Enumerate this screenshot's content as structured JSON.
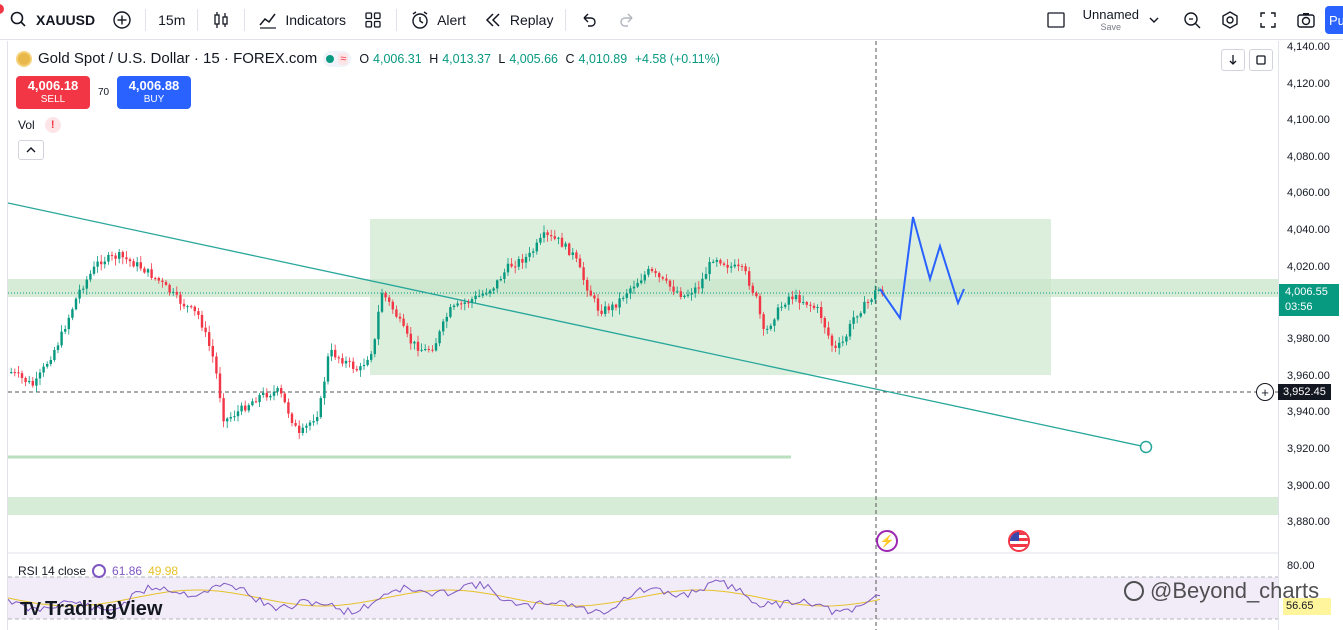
{
  "toolbar": {
    "symbol": "XAUUSD",
    "interval": "15m",
    "indicators": "Indicators",
    "alert": "Alert",
    "replay": "Replay",
    "layout_name": "Unnamed",
    "layout_save": "Save",
    "publish": "Pu"
  },
  "legend": {
    "title": "Gold Spot / U.S. Dollar · 15 · FOREX.com",
    "o_label": "O",
    "o": "4,006.31",
    "h_label": "H",
    "h": "4,013.37",
    "l_label": "L",
    "l": "4,005.66",
    "c_label": "C",
    "c": "4,010.89",
    "change": "+4.58 (+0.11%)",
    "pill_glyph": "≈"
  },
  "trade": {
    "sell_price": "4,006.18",
    "sell_label": "SELL",
    "spread": "70",
    "buy_price": "4,006.88",
    "buy_label": "BUY"
  },
  "volume": {
    "label": "Vol",
    "warning": "!"
  },
  "rsi": {
    "label": "RSI 14 close",
    "value1": "61.86",
    "value2": "49.98",
    "tag": "56.65"
  },
  "axis": {
    "ticks": [
      "4,140.00",
      "4,120.00",
      "4,100.00",
      "4,080.00",
      "4,060.00",
      "4,040.00",
      "4,020.00",
      "3,980.00",
      "3,960.00",
      "3,940.00",
      "3,920.00",
      "3,900.00",
      "3,880.00",
      "80.00"
    ],
    "current_price": "4,006.55",
    "countdown": "03:56",
    "crosshair_price": "3,952.45"
  },
  "branding": {
    "logo": "TradingView",
    "watermark": "@Beyond_charts"
  },
  "colors": {
    "up": "#089981",
    "down": "#f23645",
    "zone": "#c8e6c9",
    "accent": "#2962ff",
    "rsi": "#7e57c2"
  },
  "icons": [
    "search-icon",
    "plus-circle-icon",
    "candles-icon",
    "indicators-icon",
    "templates-icon",
    "alert-icon",
    "replay-icon",
    "undo-icon",
    "redo-icon",
    "layout-icon",
    "chevron-down-icon",
    "quick-search-icon",
    "settings-icon",
    "fullscreen-icon",
    "camera-icon"
  ]
}
